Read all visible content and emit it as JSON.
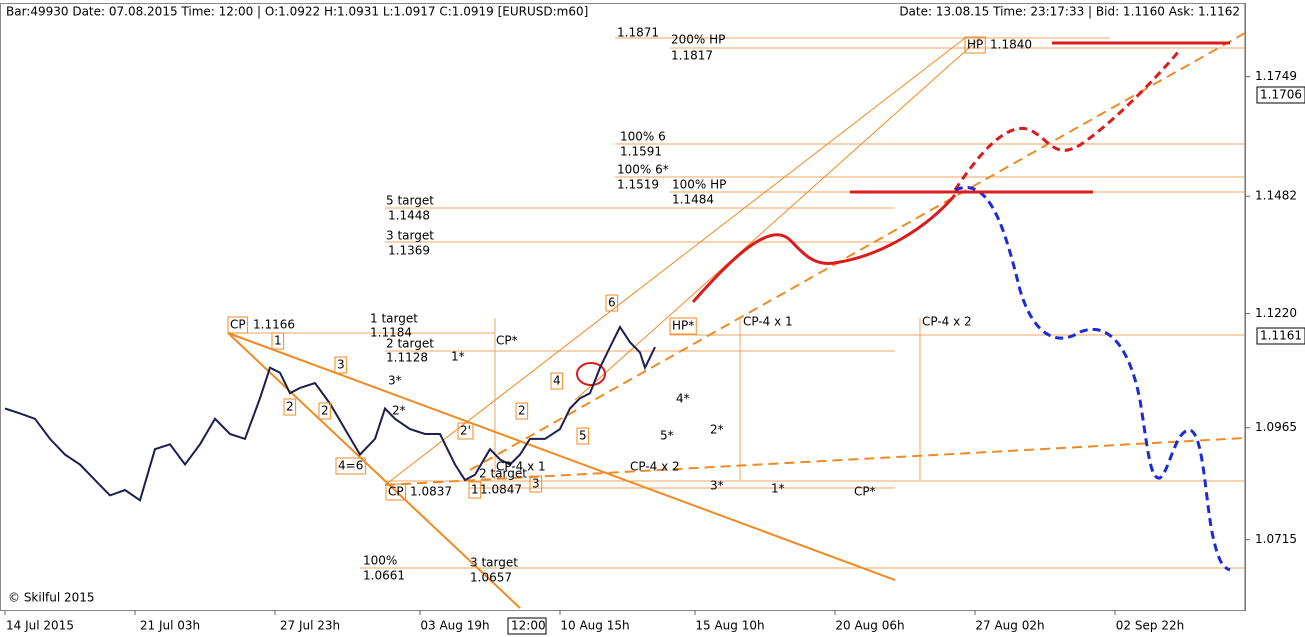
{
  "header": {
    "left": "Bar:49930  Date: 07.08.2015  Time:  12:00 | O:1.0922  H:1.0931  L:1.0917  C:1.0919  [EURUSD:m60]",
    "right": "Date: 13.08.15  Time: 23:17:33 | Bid:  1.1160  Ask:  1.1162"
  },
  "cursor_label": "12:00",
  "price_tags": [
    "1.1706",
    "1.1161"
  ],
  "annotations": [
    "1.1871",
    "200% HP",
    "1.1817",
    "HP",
    "1.1840",
    "100% 6",
    "1.1591",
    "100% 6*",
    "1.1519",
    "100% HP",
    "1.1484",
    "5 target",
    "1.1448",
    "3 target",
    "1.1369",
    "CP",
    "1.1166",
    "1 target",
    "1.1184",
    "2 target",
    "1.1128",
    "1*",
    "CP*",
    "HP*",
    "CP-4 x 1",
    "CP-4 x 2",
    "6",
    "1",
    "3",
    "3*",
    "2",
    "2",
    "2*",
    "4",
    "4*",
    "2",
    "2'",
    "5",
    "5*",
    "2*",
    "4=6",
    "CP-4 x 1",
    "2 target",
    "CP-4 x 2",
    "CP",
    "1.0837",
    "1",
    "1.0847",
    "3",
    "3*",
    "1*",
    "CP*",
    "100%",
    "1.0661",
    "3 target",
    "1.0657",
    "© Skilful 2015"
  ],
  "chart_data": {
    "type": "line",
    "color": "#1a1f4f",
    "x": [
      1,
      4,
      7,
      10,
      13,
      16,
      19,
      22,
      25,
      28,
      31,
      34,
      37,
      40,
      43,
      46,
      49,
      52,
      54,
      56,
      58,
      60,
      63,
      66,
      69,
      72,
      75,
      77,
      79,
      82,
      85,
      88,
      91,
      93,
      95,
      98,
      100,
      102,
      104,
      106,
      109,
      112,
      114,
      116,
      118,
      120,
      122,
      124,
      126,
      128,
      129,
      131
    ],
    "values": [
      1.1008,
      1.0997,
      1.0985,
      1.094,
      1.0905,
      1.0883,
      1.0848,
      1.0814,
      1.0826,
      1.0803,
      1.0917,
      1.0928,
      1.0883,
      1.0928,
      1.0985,
      1.0951,
      1.094,
      1.1031,
      1.1099,
      1.1088,
      1.1042,
      1.1054,
      1.1065,
      1.1019,
      1.0962,
      1.0905,
      1.094,
      1.1008,
      1.0985,
      1.0962,
      1.0951,
      1.0951,
      1.0883,
      1.0848,
      1.086,
      1.0917,
      1.0894,
      1.0883,
      1.0905,
      1.094,
      1.094,
      1.0962,
      1.1008,
      1.1031,
      1.1042,
      1.1099,
      1.1145,
      1.119,
      1.1156,
      1.1133,
      1.1099,
      1.1145
    ],
    "xlim": [
      0,
      249
    ],
    "xticks": [
      {
        "value": 8,
        "label": "14 Jul 2015"
      },
      {
        "value": 34,
        "label": "21 Jul 03h"
      },
      {
        "value": 62,
        "label": "27 Jul 23h"
      },
      {
        "value": 91,
        "label": "03 Aug 19h"
      },
      {
        "value": 119,
        "label": "10 Aug 15h"
      },
      {
        "value": 146,
        "label": "15 Aug 10h"
      },
      {
        "value": 174,
        "label": "20 Aug 06h"
      },
      {
        "value": 202,
        "label": "27 Aug 02h"
      },
      {
        "value": 230,
        "label": "02 Sep 22h"
      }
    ],
    "ylim": [
      1.0558,
      1.1909
    ],
    "yticks": [
      1.0715,
      1.0965,
      {
        "value": 1.122,
        "label": "1.1220"
      },
      1.1482,
      1.1749
    ]
  }
}
